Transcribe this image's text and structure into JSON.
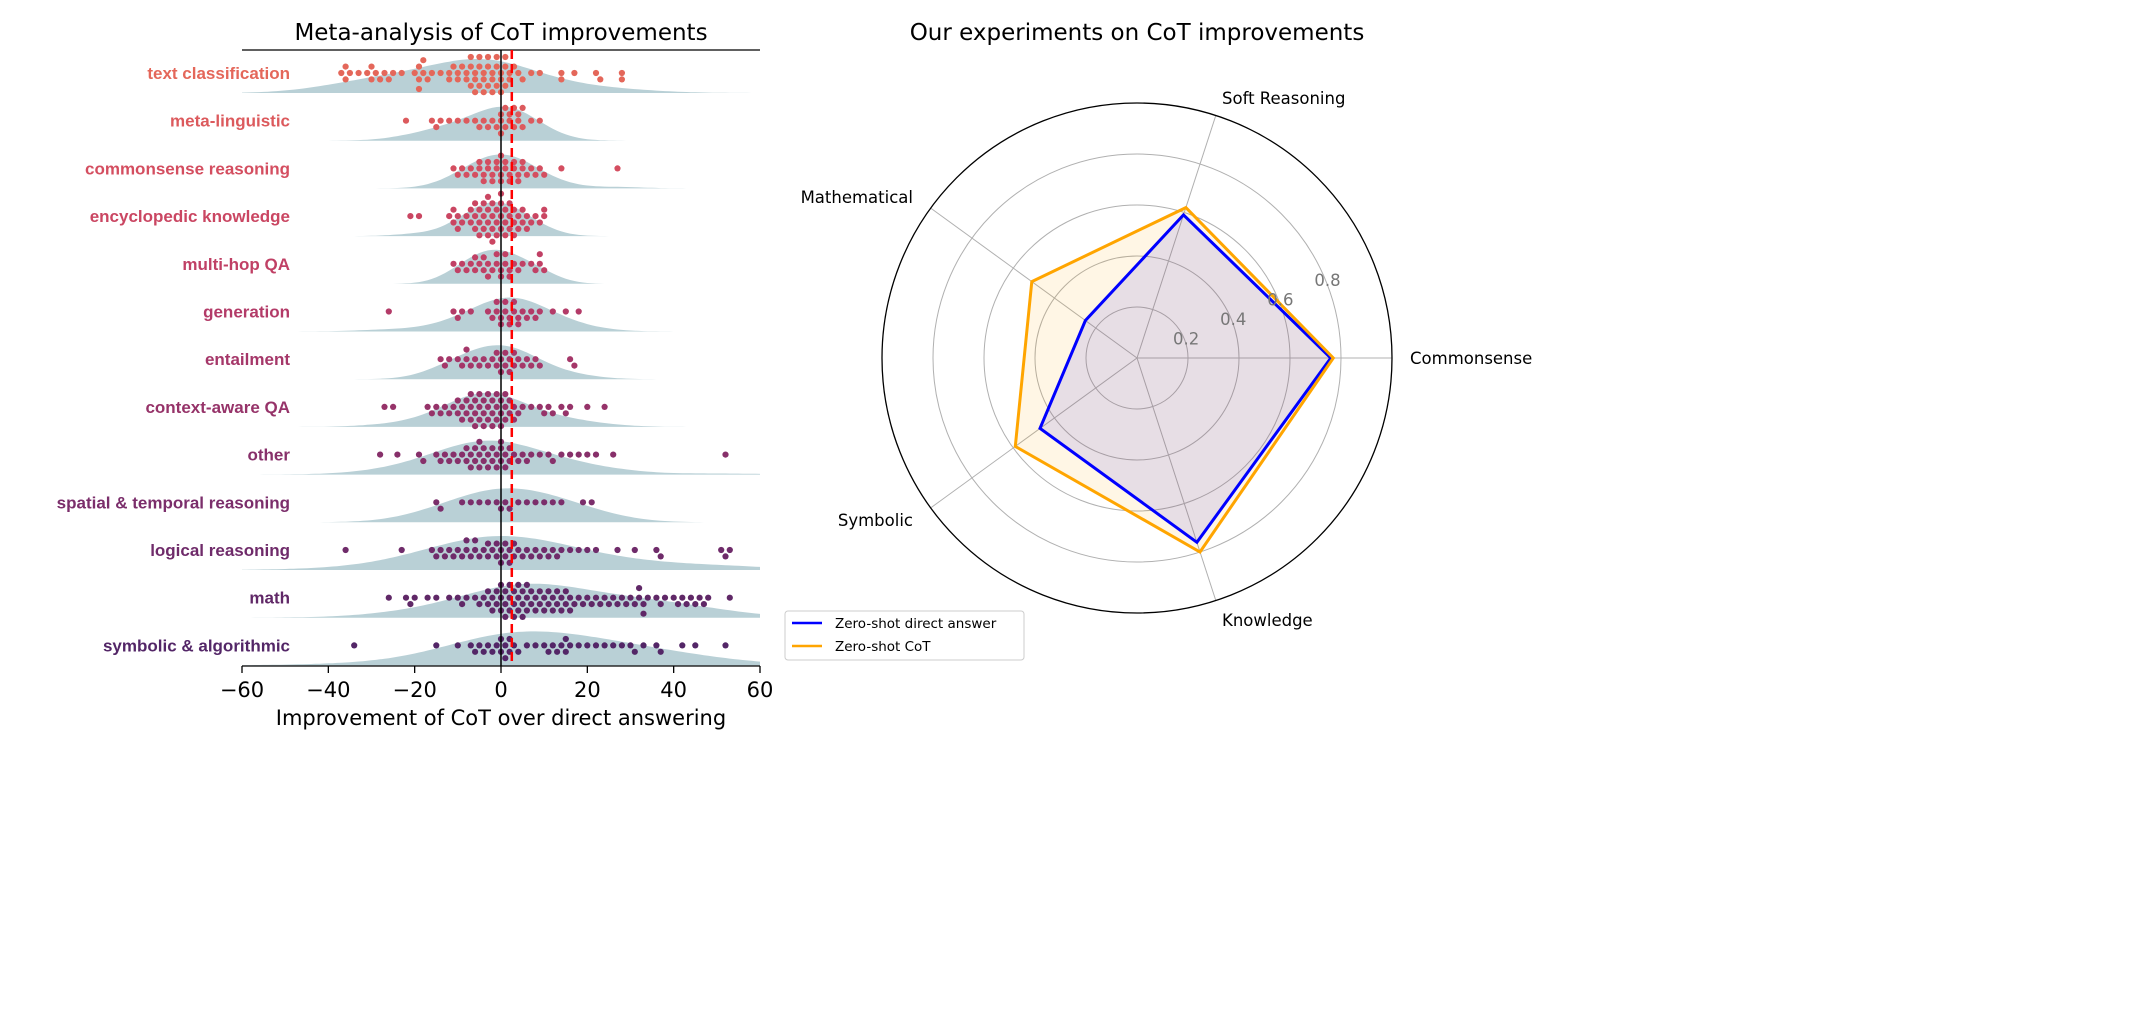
{
  "chart_data": [
    {
      "type": "scatter",
      "subtype": "swarm-with-density",
      "title": "Meta-analysis of CoT improvements",
      "xlabel": "Improvement of CoT over direct answering",
      "ylabel": "",
      "xlim": [
        -60,
        60
      ],
      "xticks": [
        "−60",
        "−40",
        "−20",
        "0",
        "20",
        "40",
        "60"
      ],
      "xtick_values": [
        -60,
        -40,
        -20,
        0,
        20,
        40,
        60
      ],
      "reference_line": 0,
      "median_line": 2.5,
      "median_line_color": "#ff0000",
      "density_color": "#b9d0d6",
      "grid": false,
      "categories": [
        {
          "label": "text classification",
          "color": "#e4675a",
          "values": [
            -37,
            -36,
            -36,
            -35,
            -33,
            -31,
            -30,
            -30,
            -29,
            -28,
            -27,
            -26,
            -25,
            -23,
            -20,
            -19,
            -19,
            -19,
            -18,
            -18,
            -17,
            -16,
            -14,
            -12,
            -12,
            -11,
            -10,
            -10,
            -9,
            -8,
            -8,
            -7,
            -7,
            -7,
            -6,
            -6,
            -6,
            -5,
            -5,
            -5,
            -4,
            -4,
            -4,
            -3,
            -3,
            -3,
            -2,
            -2,
            -2,
            -1,
            -1,
            -1,
            0,
            0,
            0,
            1,
            1,
            1,
            2,
            2,
            3,
            4,
            5,
            7,
            9,
            14,
            14,
            17,
            22,
            23,
            28,
            28
          ]
        },
        {
          "label": "meta-linguistic",
          "color": "#dc5a5d",
          "values": [
            -22,
            -16,
            -15,
            -14,
            -12,
            -10,
            -8,
            -6,
            -5,
            -4,
            -3,
            -2,
            -1,
            0,
            0,
            0,
            1,
            1,
            2,
            2,
            3,
            3,
            4,
            4,
            5,
            5,
            7,
            9
          ]
        },
        {
          "label": "commonsense reasoning",
          "color": "#d44e60",
          "values": [
            -11,
            -10,
            -9,
            -8,
            -7,
            -6,
            -5,
            -5,
            -4,
            -4,
            -3,
            -3,
            -2,
            -2,
            -1,
            -1,
            0,
            0,
            0,
            1,
            1,
            2,
            2,
            3,
            3,
            4,
            4,
            5,
            5,
            6,
            7,
            8,
            9,
            10,
            14,
            27
          ]
        },
        {
          "label": "encyclopedic knowledge",
          "color": "#ca4662",
          "values": [
            -21,
            -19,
            -12,
            -11,
            -11,
            -10,
            -10,
            -9,
            -8,
            -7,
            -7,
            -6,
            -6,
            -6,
            -5,
            -5,
            -5,
            -4,
            -4,
            -4,
            -3,
            -3,
            -3,
            -3,
            -2,
            -2,
            -2,
            -2,
            -1,
            -1,
            -1,
            0,
            0,
            0,
            0,
            1,
            1,
            1,
            2,
            2,
            2,
            3,
            3,
            3,
            4,
            4,
            5,
            5,
            6,
            6,
            7,
            8,
            9,
            10,
            10
          ]
        },
        {
          "label": "multi-hop QA",
          "color": "#c04065",
          "values": [
            -11,
            -10,
            -9,
            -8,
            -7,
            -6,
            -6,
            -5,
            -4,
            -4,
            -3,
            -3,
            -2,
            -1,
            -1,
            0,
            0,
            1,
            1,
            2,
            2,
            3,
            4,
            5,
            7,
            8,
            9,
            9,
            10
          ]
        },
        {
          "label": "generation",
          "color": "#b33b68",
          "values": [
            -26,
            -11,
            -10,
            -9,
            -7,
            -3,
            -2,
            -1,
            -1,
            0,
            0,
            1,
            1,
            2,
            2,
            3,
            3,
            4,
            4,
            5,
            6,
            7,
            8,
            9,
            12,
            15,
            18
          ]
        },
        {
          "label": "entailment",
          "color": "#a53769",
          "values": [
            -14,
            -13,
            -12,
            -10,
            -9,
            -8,
            -8,
            -7,
            -6,
            -5,
            -4,
            -3,
            -2,
            -1,
            -1,
            0,
            0,
            1,
            1,
            2,
            2,
            3,
            3,
            4,
            5,
            6,
            7,
            8,
            9,
            16,
            17
          ]
        },
        {
          "label": "context-aware QA",
          "color": "#963369",
          "values": [
            -27,
            -25,
            -17,
            -16,
            -15,
            -14,
            -13,
            -12,
            -11,
            -10,
            -10,
            -9,
            -9,
            -8,
            -8,
            -7,
            -7,
            -7,
            -6,
            -6,
            -6,
            -5,
            -5,
            -5,
            -4,
            -4,
            -4,
            -3,
            -3,
            -3,
            -2,
            -2,
            -2,
            -1,
            -1,
            -1,
            0,
            0,
            0,
            1,
            1,
            1,
            2,
            2,
            3,
            3,
            4,
            5,
            7,
            9,
            10,
            11,
            12,
            14,
            15,
            16,
            20,
            24
          ]
        },
        {
          "label": "other",
          "color": "#87306a",
          "values": [
            -28,
            -24,
            -19,
            -18,
            -15,
            -14,
            -13,
            -12,
            -11,
            -10,
            -9,
            -8,
            -8,
            -7,
            -7,
            -6,
            -6,
            -5,
            -5,
            -5,
            -4,
            -4,
            -3,
            -3,
            -2,
            -2,
            -1,
            -1,
            0,
            0,
            0,
            1,
            1,
            2,
            2,
            3,
            4,
            5,
            6,
            7,
            9,
            11,
            12,
            14,
            16,
            18,
            20,
            22,
            26,
            52
          ]
        },
        {
          "label": "spatial & temporal reasoning",
          "color": "#7b2e6b",
          "values": [
            -15,
            -14,
            -9,
            -7,
            -5,
            -3,
            -1,
            0,
            1,
            2,
            4,
            6,
            8,
            10,
            12,
            14,
            19,
            21
          ]
        },
        {
          "label": "logical reasoning",
          "color": "#6f2b6a",
          "values": [
            -36,
            -23,
            -16,
            -15,
            -14,
            -13,
            -12,
            -11,
            -10,
            -9,
            -8,
            -8,
            -7,
            -6,
            -6,
            -5,
            -4,
            -3,
            -3,
            -2,
            -1,
            -1,
            0,
            0,
            1,
            1,
            2,
            2,
            3,
            3,
            4,
            5,
            6,
            7,
            8,
            9,
            10,
            11,
            12,
            13,
            14,
            16,
            18,
            20,
            22,
            27,
            31,
            36,
            37,
            51,
            52,
            53
          ]
        },
        {
          "label": "math",
          "color": "#602867",
          "values": [
            -26,
            -22,
            -21,
            -20,
            -17,
            -15,
            -12,
            -10,
            -9,
            -8,
            -6,
            -5,
            -4,
            -3,
            -3,
            -2,
            -2,
            -1,
            -1,
            0,
            0,
            0,
            1,
            1,
            1,
            2,
            2,
            2,
            3,
            3,
            3,
            4,
            4,
            4,
            5,
            5,
            5,
            6,
            6,
            6,
            7,
            7,
            8,
            8,
            9,
            9,
            10,
            10,
            11,
            11,
            12,
            12,
            13,
            13,
            14,
            14,
            15,
            15,
            16,
            16,
            17,
            18,
            19,
            20,
            21,
            22,
            23,
            24,
            25,
            26,
            27,
            28,
            29,
            30,
            31,
            32,
            32,
            33,
            33,
            34,
            36,
            37,
            38,
            40,
            41,
            42,
            43,
            44,
            45,
            46,
            47,
            48,
            53
          ]
        },
        {
          "label": "symbolic & algorithmic",
          "color": "#532667",
          "values": [
            -34,
            -15,
            -10,
            -7,
            -6,
            -5,
            -4,
            -3,
            -2,
            -1,
            0,
            0,
            1,
            1,
            2,
            2,
            3,
            4,
            6,
            8,
            10,
            11,
            12,
            13,
            14,
            15,
            15,
            16,
            18,
            20,
            22,
            24,
            26,
            28,
            30,
            31,
            33,
            36,
            37,
            42,
            45,
            52
          ]
        }
      ]
    },
    {
      "type": "radar",
      "title": "Our experiments on CoT improvements",
      "axes": [
        "Commonsense",
        "Soft Reasoning",
        "Mathematical",
        "Symbolic",
        "Knowledge"
      ],
      "rlim": [
        0,
        1.0
      ],
      "rticks": [
        "0.2",
        "0.4",
        "0.6",
        "0.8"
      ],
      "rtick_values": [
        0.2,
        0.4,
        0.6,
        0.8
      ],
      "grid": true,
      "legend_position": "bottom-left",
      "series": [
        {
          "name": "Zero-shot direct answer",
          "color": "#0000ff",
          "values": [
            0.76,
            0.59,
            0.25,
            0.47,
            0.76
          ]
        },
        {
          "name": "Zero-shot CoT",
          "color": "#ffa500",
          "values": [
            0.77,
            0.62,
            0.51,
            0.59,
            0.8
          ]
        }
      ]
    }
  ]
}
